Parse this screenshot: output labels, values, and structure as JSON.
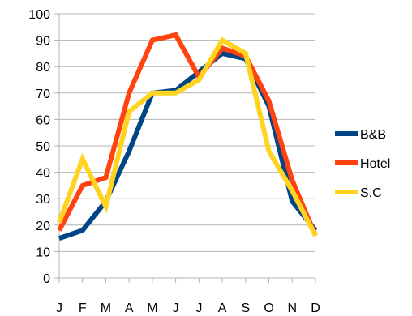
{
  "chart_data": {
    "type": "line",
    "title": "",
    "xlabel": "",
    "ylabel": "",
    "categories": [
      "J",
      "F",
      "M",
      "A",
      "M",
      "J",
      "J",
      "A",
      "S",
      "O",
      "N",
      "D"
    ],
    "ylim": [
      0,
      100
    ],
    "yticks": [
      0,
      10,
      20,
      30,
      40,
      50,
      60,
      70,
      80,
      90,
      100
    ],
    "grid": true,
    "legend_position": "right",
    "series": [
      {
        "name": "B&B",
        "color": "#004586",
        "values": [
          15,
          18,
          29,
          48,
          70,
          71,
          78,
          85,
          83,
          65,
          29,
          18
        ]
      },
      {
        "name": "Hotel",
        "color": "#ff420e",
        "values": [
          18,
          35,
          38,
          70,
          90,
          92,
          76,
          87,
          84,
          67,
          37,
          16
        ]
      },
      {
        "name": "S.C",
        "color": "#ffd320",
        "values": [
          21,
          45,
          27,
          63,
          70,
          70,
          75,
          90,
          85,
          48,
          33,
          16
        ]
      }
    ]
  }
}
